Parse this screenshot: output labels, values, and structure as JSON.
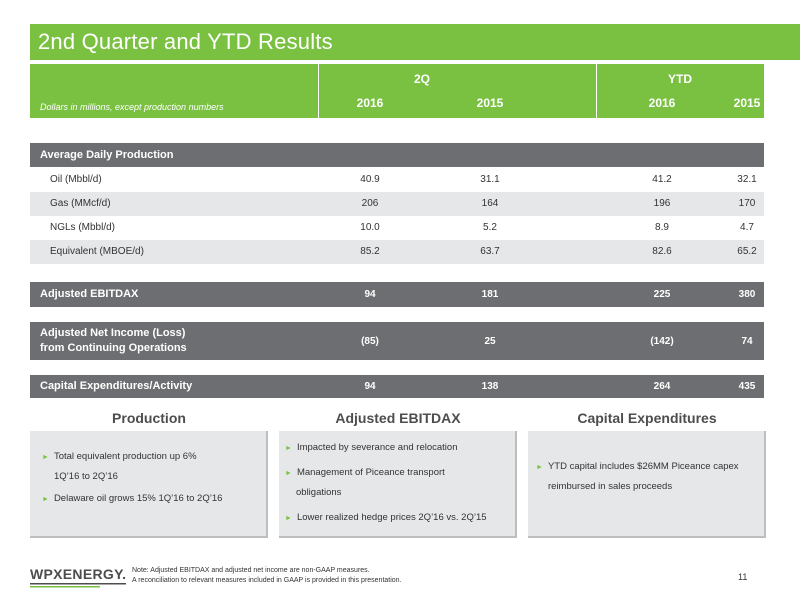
{
  "title": "2nd Quarter and YTD Results",
  "header": {
    "group_q": "2Q",
    "group_ytd": "YTD",
    "note": "Dollars in millions, except production numbers",
    "years": [
      "2016",
      "2015",
      "2016",
      "2015"
    ]
  },
  "production": {
    "label": "Average Daily Production",
    "rows": [
      {
        "label": "Oil (Mbbl/d)",
        "values": [
          "40.9",
          "31.1",
          "41.2",
          "32.1"
        ]
      },
      {
        "label": "Gas (MMcf/d)",
        "values": [
          "206",
          "164",
          "196",
          "170"
        ]
      },
      {
        "label": "NGLs (Mbbl/d)",
        "values": [
          "10.0",
          "5.2",
          "8.9",
          "4.7"
        ]
      },
      {
        "label": "Equivalent (MBOE/d)",
        "values": [
          "85.2",
          "63.7",
          "82.6",
          "65.2"
        ]
      }
    ]
  },
  "ebitdax": {
    "label": "Adjusted EBITDAX",
    "values": [
      "94",
      "181",
      "225",
      "380"
    ]
  },
  "net_income": {
    "label_line1": "Adjusted Net Income (Loss)",
    "label_line2": "from Continuing Operations",
    "values": [
      "(85)",
      "25",
      "(142)",
      "74"
    ]
  },
  "capex": {
    "label": "Capital Expenditures/Activity",
    "values": [
      "94",
      "138",
      "264",
      "435"
    ]
  },
  "boxes": {
    "production": {
      "title": "Production",
      "bullets": [
        "Total equivalent production up 6%",
        "1Q’16 to 2Q’16",
        "Delaware oil grows 15% 1Q’16 to 2Q’16"
      ]
    },
    "ebitdax": {
      "title": "Adjusted EBITDAX",
      "bullets": [
        "Impacted by severance and relocation",
        "Management of Piceance transport",
        "obligations",
        "Lower realized hedge prices 2Q’16 vs. 2Q’15"
      ]
    },
    "capex": {
      "title": "Capital Expenditures",
      "bullets": [
        "YTD capital includes $26MM Piceance capex",
        "reimbursed in sales proceeds"
      ]
    }
  },
  "footer": {
    "logo": "WPXENERGY.",
    "note_line1": "Note: Adjusted EBITDAX and adjusted net income are non-GAAP measures.",
    "note_line2": "A reconciliation to relevant measures included in GAAP is provided in this presentation.",
    "page": "11"
  },
  "colors": {
    "accent": "#7ac142",
    "band": "#6d6e71",
    "alt_row": "#e6e7e8"
  }
}
